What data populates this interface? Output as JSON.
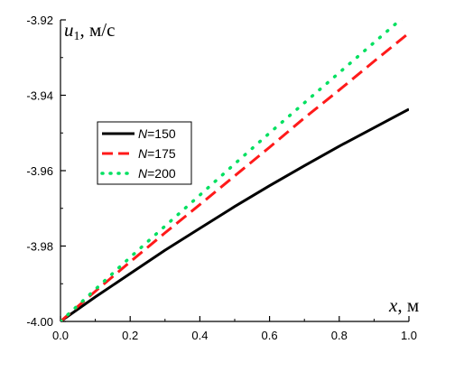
{
  "chart_data": {
    "type": "line",
    "title": "",
    "xlabel": {
      "var": "x",
      "unit": ", м"
    },
    "ylabel": {
      "var": "u",
      "sub": "1",
      "unit": ", м/с"
    },
    "xlim": [
      0.0,
      1.0
    ],
    "ylim": [
      -4.0,
      -3.92
    ],
    "x_ticks": [
      0.0,
      0.2,
      0.4,
      0.6,
      0.8,
      1.0
    ],
    "x_tick_labels": [
      "0.0",
      "0.2",
      "0.4",
      "0.6",
      "0.8",
      "1.0"
    ],
    "y_ticks": [
      -4.0,
      -3.98,
      -3.96,
      -3.94,
      -3.92
    ],
    "y_tick_labels": [
      "-4.00",
      "-3.98",
      "-3.96",
      "-3.94",
      "-3.92"
    ],
    "grid": false,
    "legend": {
      "position": "center-left"
    },
    "series": [
      {
        "name": "N=150",
        "name_var": "N",
        "name_rest": "=150",
        "color": "#000000",
        "style": "solid",
        "x": [
          0.0,
          0.1,
          0.2,
          0.3,
          0.4,
          0.5,
          0.6,
          0.7,
          0.8,
          0.9,
          1.0
        ],
        "y": [
          -4.0,
          -3.9935,
          -3.9873,
          -3.9811,
          -3.9753,
          -3.9695,
          -3.964,
          -3.9587,
          -3.9535,
          -3.9486,
          -3.9437
        ]
      },
      {
        "name": "N=175",
        "name_var": "N",
        "name_rest": "=175",
        "color": "#ff1a1a",
        "style": "dashed",
        "x": [
          0.0,
          0.1,
          0.2,
          0.3,
          0.4,
          0.5,
          0.6,
          0.7,
          0.8,
          0.9,
          1.0
        ],
        "y": [
          -4.0,
          -3.992,
          -3.9842,
          -3.9765,
          -3.969,
          -3.9614,
          -3.9538,
          -3.946,
          -3.9386,
          -3.931,
          -3.9235
        ]
      },
      {
        "name": "N=200",
        "name_var": "N",
        "name_rest": "=200",
        "color": "#00e060",
        "style": "dotted",
        "x": [
          0.0,
          0.1,
          0.2,
          0.3,
          0.4,
          0.5,
          0.6,
          0.7,
          0.8,
          0.9,
          1.0
        ],
        "y": [
          -4.0,
          -3.9915,
          -3.983,
          -3.9747,
          -3.9665,
          -3.9582,
          -3.95,
          -3.942,
          -3.934,
          -3.926,
          -3.918
        ]
      }
    ]
  }
}
